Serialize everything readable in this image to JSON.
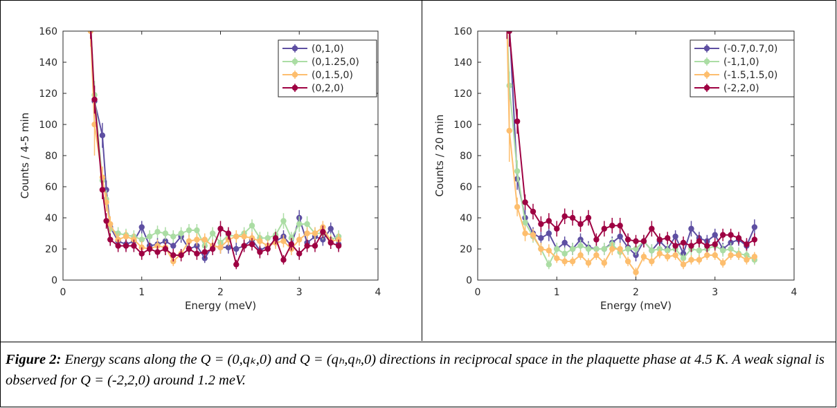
{
  "figure": {
    "caption_label": "Figure 2:",
    "caption_text": "Energy scans along the Q = (0,qₖ,0) and Q = (qₕ,qₕ,0) directions in reciprocal space in the plaquette phase at 4.5 K. A weak signal is observed for Q = (-2,2,0) around 1.2 meV."
  },
  "colors": {
    "purple": "#5E4FA2",
    "green": "#ABDDA4",
    "orange": "#FDBE6E",
    "crimson": "#9E0142"
  },
  "chart_data": [
    {
      "type": "line",
      "xlabel": "Energy (meV)",
      "ylabel": "Counts / 4-5 min",
      "xlim": [
        0,
        4
      ],
      "ylim": [
        0,
        160
      ],
      "xticks": [
        "0",
        "1",
        "2",
        "3",
        "4"
      ],
      "yticks": [
        "0",
        "20",
        "40",
        "60",
        "80",
        "100",
        "120",
        "140",
        "160"
      ],
      "legend_position": "top-right",
      "grid": false,
      "x": [
        0.35,
        0.4,
        0.5,
        0.55,
        0.6,
        0.7,
        0.8,
        0.9,
        1.0,
        1.1,
        1.2,
        1.3,
        1.4,
        1.5,
        1.6,
        1.7,
        1.8,
        1.9,
        2.0,
        2.1,
        2.2,
        2.3,
        2.4,
        2.5,
        2.6,
        2.7,
        2.8,
        2.9,
        3.0,
        3.1,
        3.2,
        3.3,
        3.4,
        3.5
      ],
      "series": [
        {
          "name": "(0,1,0)",
          "color": "#5E4FA2",
          "values": [
            165,
            115,
            93,
            58,
            34,
            25,
            23,
            25,
            34,
            22,
            23,
            25,
            22,
            28,
            20,
            22,
            14,
            22,
            21,
            21,
            20,
            22,
            26,
            19,
            22,
            25,
            28,
            22,
            40,
            24,
            28,
            26,
            33,
            23
          ],
          "errors": [
            10,
            9,
            8,
            6,
            5,
            4,
            4,
            4,
            4,
            4,
            4,
            4,
            4,
            4,
            4,
            4,
            3,
            4,
            4,
            4,
            4,
            4,
            4,
            4,
            4,
            4,
            4,
            4,
            5,
            4,
            4,
            4,
            4,
            4
          ]
        },
        {
          "name": "(0,1.25,0)",
          "color": "#ABDDA4",
          "values": [
            165,
            119,
            64,
            52,
            33,
            30,
            29,
            28,
            26,
            28,
            31,
            30,
            28,
            30,
            32,
            32,
            22,
            30,
            24,
            29,
            28,
            30,
            35,
            27,
            27,
            29,
            38,
            27,
            36,
            36,
            30,
            30,
            26,
            28
          ],
          "errors": [
            10,
            9,
            7,
            6,
            5,
            4,
            4,
            4,
            4,
            4,
            4,
            4,
            4,
            4,
            4,
            4,
            4,
            4,
            4,
            4,
            4,
            4,
            4,
            4,
            4,
            4,
            5,
            4,
            5,
            5,
            4,
            4,
            4,
            4
          ]
        },
        {
          "name": "(0,1.5,0)",
          "color": "#FDBE6E",
          "values": [
            160,
            100,
            66,
            50,
            36,
            26,
            28,
            26,
            21,
            20,
            22,
            21,
            12,
            17,
            25,
            26,
            26,
            22,
            21,
            26,
            28,
            28,
            27,
            25,
            22,
            24,
            25,
            20,
            26,
            30,
            30,
            34,
            25,
            26
          ],
          "errors": [
            10,
            20,
            7,
            6,
            5,
            4,
            4,
            4,
            4,
            4,
            4,
            4,
            3,
            3,
            4,
            4,
            4,
            4,
            4,
            4,
            4,
            4,
            4,
            4,
            4,
            4,
            4,
            4,
            4,
            4,
            4,
            4,
            4,
            4
          ]
        },
        {
          "name": "(0,2,0)",
          "color": "#9E0142",
          "values": [
            165,
            116,
            58,
            38,
            26,
            22,
            22,
            22,
            17,
            20,
            18,
            20,
            16,
            16,
            20,
            17,
            18,
            20,
            33,
            30,
            10,
            22,
            23,
            18,
            20,
            27,
            13,
            23,
            17,
            22,
            22,
            31,
            24,
            22
          ],
          "errors": [
            10,
            9,
            6,
            5,
            4,
            4,
            4,
            4,
            4,
            4,
            4,
            4,
            4,
            4,
            4,
            4,
            4,
            4,
            5,
            4,
            3,
            4,
            4,
            4,
            4,
            4,
            3,
            4,
            4,
            4,
            4,
            4,
            4,
            4
          ]
        }
      ]
    },
    {
      "type": "line",
      "xlabel": "Energy (meV)",
      "ylabel": "Counts / 20 min",
      "xlim": [
        0,
        4
      ],
      "ylim": [
        0,
        160
      ],
      "xticks": [
        "0",
        "1",
        "2",
        "3",
        "4"
      ],
      "yticks": [
        "0",
        "20",
        "40",
        "60",
        "80",
        "100",
        "120",
        "140",
        "160"
      ],
      "legend_position": "top-right",
      "grid": false,
      "x": [
        0.37,
        0.4,
        0.5,
        0.6,
        0.7,
        0.8,
        0.9,
        1.0,
        1.1,
        1.2,
        1.3,
        1.4,
        1.5,
        1.6,
        1.7,
        1.8,
        1.9,
        2.0,
        2.1,
        2.2,
        2.3,
        2.4,
        2.5,
        2.6,
        2.7,
        2.8,
        2.9,
        3.0,
        3.1,
        3.2,
        3.3,
        3.4,
        3.5
      ],
      "series": [
        {
          "name": "(-0.7,0.7,0)",
          "color": "#5E4FA2",
          "values": [
            165,
            165,
            65,
            40,
            30,
            27,
            30,
            20,
            24,
            20,
            26,
            21,
            20,
            20,
            24,
            28,
            21,
            16,
            25,
            19,
            25,
            20,
            28,
            17,
            33,
            27,
            25,
            29,
            20,
            24,
            26,
            22,
            34
          ],
          "errors": [
            10,
            10,
            7,
            5,
            4,
            4,
            5,
            4,
            4,
            4,
            4,
            4,
            4,
            4,
            4,
            4,
            4,
            4,
            4,
            4,
            4,
            4,
            4,
            4,
            5,
            4,
            4,
            4,
            4,
            4,
            4,
            4,
            5
          ]
        },
        {
          "name": "(-1,1,0)",
          "color": "#ABDDA4",
          "values": [
            165,
            125,
            70,
            37,
            28,
            20,
            10,
            20,
            17,
            20,
            22,
            20,
            20,
            20,
            23,
            18,
            20,
            20,
            25,
            19,
            20,
            19,
            20,
            14,
            20,
            19,
            20,
            22,
            19,
            20,
            17,
            16,
            13
          ],
          "errors": [
            10,
            9,
            7,
            5,
            4,
            4,
            3,
            4,
            4,
            4,
            4,
            4,
            4,
            4,
            4,
            4,
            4,
            4,
            4,
            4,
            4,
            4,
            4,
            3,
            4,
            4,
            4,
            4,
            4,
            4,
            4,
            3,
            3
          ]
        },
        {
          "name": "(-1.5,1.5,0)",
          "color": "#FDBE6E",
          "values": [
            165,
            96,
            47,
            30,
            29,
            20,
            19,
            14,
            12,
            12,
            16,
            11,
            16,
            11,
            20,
            20,
            12,
            5,
            15,
            12,
            17,
            15,
            16,
            10,
            13,
            13,
            16,
            16,
            11,
            16,
            16,
            13,
            15
          ],
          "errors": [
            10,
            20,
            6,
            5,
            4,
            4,
            4,
            3,
            3,
            3,
            3,
            3,
            3,
            3,
            4,
            4,
            3,
            3,
            3,
            3,
            3,
            3,
            3,
            3,
            3,
            3,
            3,
            3,
            3,
            3,
            3,
            3,
            3
          ]
        },
        {
          "name": "(-2,2,0)",
          "color": "#9E0142",
          "values": [
            165,
            160,
            102,
            50,
            44,
            36,
            38,
            33,
            41,
            40,
            36,
            40,
            26,
            33,
            35,
            35,
            26,
            25,
            25,
            33,
            26,
            27,
            22,
            24,
            22,
            25,
            22,
            23,
            29,
            29,
            27,
            23,
            26
          ],
          "errors": [
            10,
            10,
            8,
            5,
            5,
            5,
            5,
            5,
            5,
            5,
            5,
            5,
            4,
            5,
            5,
            5,
            4,
            4,
            4,
            5,
            4,
            4,
            4,
            4,
            4,
            4,
            4,
            4,
            4,
            4,
            4,
            4,
            4
          ]
        }
      ]
    }
  ]
}
